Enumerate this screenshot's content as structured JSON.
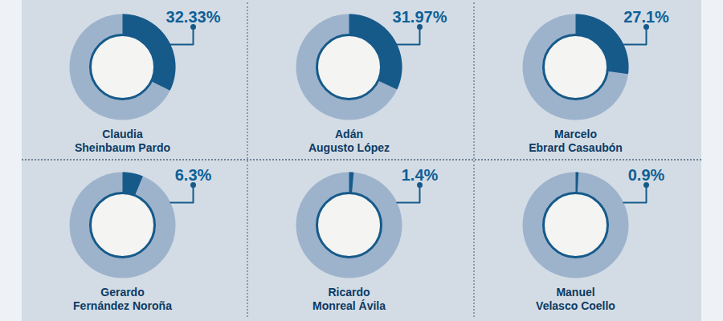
{
  "chart_data": {
    "type": "donut",
    "categories": [
      "Claudia Sheinbaum Pardo",
      "Adán Augusto López",
      "Marcelo Ebrard Casaubón",
      "Gerardo Fernández Noroña",
      "Ricardo Monreal Ávila",
      "Manuel Velasco Coello"
    ],
    "values": [
      32.33,
      31.97,
      27.1,
      6.3,
      1.4,
      0.9
    ],
    "value_labels": [
      "32.33%",
      "31.97%",
      "27.1%",
      "6.3%",
      "1.4%",
      "0.9%"
    ],
    "data_labels": true,
    "color": "#165a8a"
  }
}
